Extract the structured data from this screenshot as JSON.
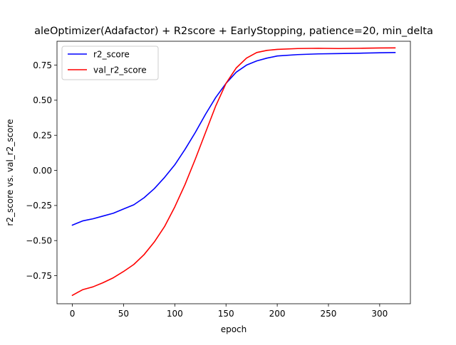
{
  "chart_data": {
    "type": "line",
    "title": "aleOptimizer(Adafactor) + R2score + EarlyStopping, patience=20, min_delta",
    "xlabel": "epoch",
    "ylabel": "r2_score vs. val_r2_score",
    "xlim": [
      -15,
      330
    ],
    "ylim": [
      -0.95,
      0.92
    ],
    "xticks": [
      0,
      50,
      100,
      150,
      200,
      250,
      300
    ],
    "xtick_labels": [
      "0",
      "50",
      "100",
      "150",
      "200",
      "250",
      "300"
    ],
    "yticks": [
      -0.75,
      -0.5,
      -0.25,
      0.0,
      0.25,
      0.5,
      0.75
    ],
    "ytick_labels": [
      "−0.75",
      "−0.50",
      "−0.25",
      "0.00",
      "0.25",
      "0.50",
      "0.75"
    ],
    "grid": false,
    "legend_position": "top-left",
    "series": [
      {
        "name": "r2_score",
        "color": "#0000ff",
        "x": [
          0,
          5,
          10,
          20,
          30,
          40,
          50,
          60,
          70,
          80,
          90,
          100,
          110,
          120,
          130,
          140,
          150,
          160,
          170,
          180,
          190,
          200,
          220,
          240,
          260,
          280,
          300,
          315
        ],
        "y": [
          -0.39,
          -0.375,
          -0.36,
          -0.345,
          -0.325,
          -0.305,
          -0.275,
          -0.245,
          -0.195,
          -0.13,
          -0.05,
          0.04,
          0.15,
          0.27,
          0.4,
          0.52,
          0.62,
          0.7,
          0.75,
          0.78,
          0.8,
          0.815,
          0.825,
          0.83,
          0.832,
          0.835,
          0.838,
          0.84
        ]
      },
      {
        "name": "val_r2_score",
        "color": "#ff0000",
        "x": [
          0,
          5,
          10,
          20,
          30,
          40,
          50,
          60,
          70,
          80,
          90,
          100,
          110,
          120,
          130,
          140,
          150,
          160,
          170,
          180,
          190,
          200,
          220,
          240,
          260,
          280,
          300,
          315
        ],
        "y": [
          -0.89,
          -0.87,
          -0.85,
          -0.83,
          -0.8,
          -0.765,
          -0.72,
          -0.67,
          -0.6,
          -0.51,
          -0.4,
          -0.26,
          -0.1,
          0.08,
          0.27,
          0.46,
          0.62,
          0.73,
          0.8,
          0.84,
          0.855,
          0.862,
          0.868,
          0.87,
          0.868,
          0.87,
          0.872,
          0.873
        ]
      }
    ]
  }
}
